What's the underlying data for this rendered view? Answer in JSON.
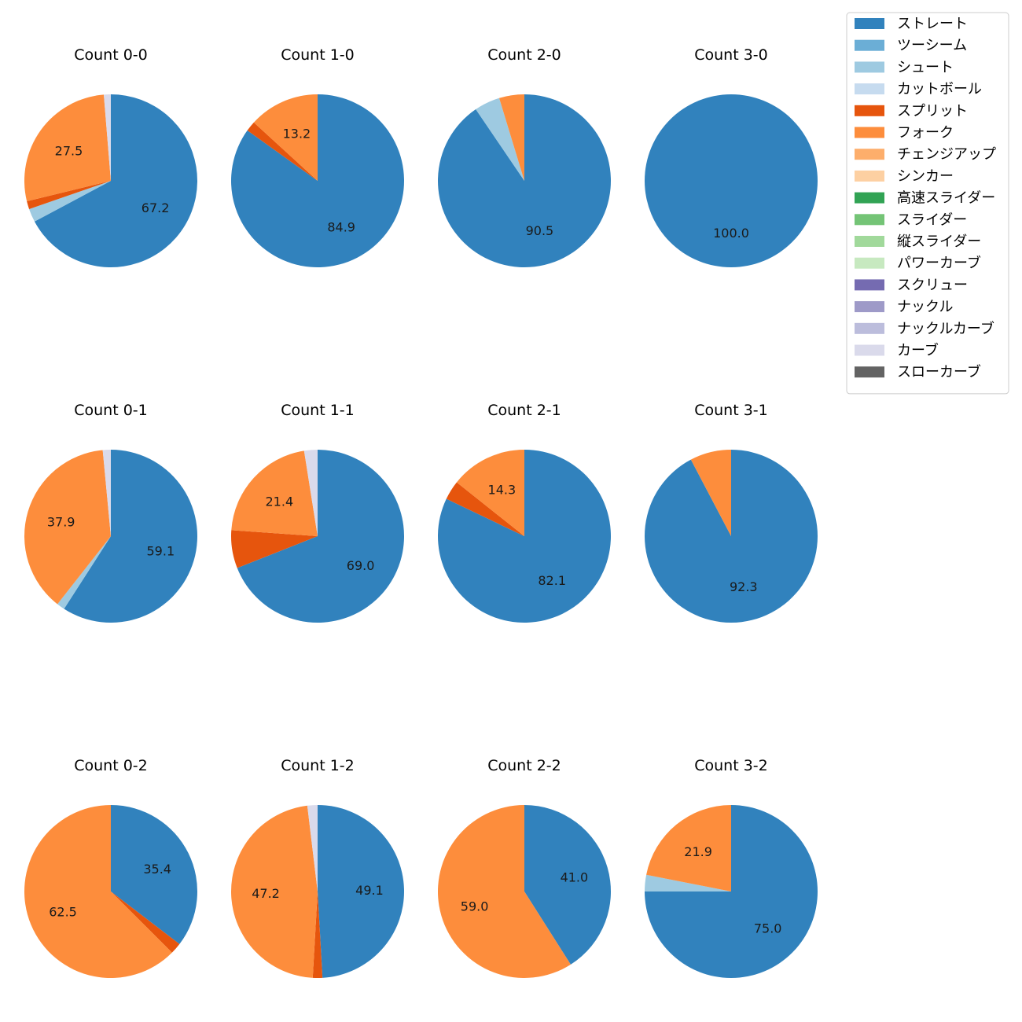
{
  "chart_data": {
    "type": "pie",
    "legend": {
      "placement": "top-right",
      "entries": [
        {
          "name": "ストレート",
          "color": "#3182bd"
        },
        {
          "name": "ツーシーム",
          "color": "#6baed6"
        },
        {
          "name": "シュート",
          "color": "#9ecae1"
        },
        {
          "name": "カットボール",
          "color": "#c6dbef"
        },
        {
          "name": "スプリット",
          "color": "#e6550d"
        },
        {
          "name": "フォーク",
          "color": "#fd8d3c"
        },
        {
          "name": "チェンジアップ",
          "color": "#fdae6b"
        },
        {
          "name": "シンカー",
          "color": "#fdd0a2"
        },
        {
          "name": "高速スライダー",
          "color": "#31a354"
        },
        {
          "name": "スライダー",
          "color": "#74c476"
        },
        {
          "name": "縦スライダー",
          "color": "#a1d99b"
        },
        {
          "name": "パワーカーブ",
          "color": "#c7e9c0"
        },
        {
          "name": "スクリュー",
          "color": "#756bb1"
        },
        {
          "name": "ナックル",
          "color": "#9e9ac8"
        },
        {
          "name": "ナックルカーブ",
          "color": "#bcbddc"
        },
        {
          "name": "カーブ",
          "color": "#dadaeb"
        },
        {
          "name": "スローカーブ",
          "color": "#636363"
        }
      ]
    },
    "pies": [
      {
        "title": "Count 0-0",
        "slices": [
          {
            "pitch": "ストレート",
            "value": 67.2,
            "label": "67.2"
          },
          {
            "pitch": "シュート",
            "value": 2.5
          },
          {
            "pitch": "スプリット",
            "value": 1.5
          },
          {
            "pitch": "フォーク",
            "value": 27.5,
            "label": "27.5"
          },
          {
            "pitch": "カーブ",
            "value": 1.3
          }
        ]
      },
      {
        "title": "Count 1-0",
        "slices": [
          {
            "pitch": "ストレート",
            "value": 84.9,
            "label": "84.9"
          },
          {
            "pitch": "スプリット",
            "value": 1.9
          },
          {
            "pitch": "フォーク",
            "value": 13.2,
            "label": "13.2"
          }
        ]
      },
      {
        "title": "Count 2-0",
        "slices": [
          {
            "pitch": "ストレート",
            "value": 90.5,
            "label": "90.5"
          },
          {
            "pitch": "シュート",
            "value": 4.8
          },
          {
            "pitch": "フォーク",
            "value": 4.7
          }
        ]
      },
      {
        "title": "Count 3-0",
        "slices": [
          {
            "pitch": "ストレート",
            "value": 100.0,
            "label": "100.0"
          }
        ]
      },
      {
        "title": "Count 0-1",
        "slices": [
          {
            "pitch": "ストレート",
            "value": 59.1,
            "label": "59.1"
          },
          {
            "pitch": "シュート",
            "value": 1.5
          },
          {
            "pitch": "フォーク",
            "value": 37.9,
            "label": "37.9"
          },
          {
            "pitch": "カーブ",
            "value": 1.5
          }
        ]
      },
      {
        "title": "Count 1-1",
        "slices": [
          {
            "pitch": "ストレート",
            "value": 69.0,
            "label": "69.0"
          },
          {
            "pitch": "スプリット",
            "value": 7.1
          },
          {
            "pitch": "フォーク",
            "value": 21.4,
            "label": "21.4"
          },
          {
            "pitch": "カーブ",
            "value": 2.5
          }
        ]
      },
      {
        "title": "Count 2-1",
        "slices": [
          {
            "pitch": "ストレート",
            "value": 82.1,
            "label": "82.1"
          },
          {
            "pitch": "スプリット",
            "value": 3.6
          },
          {
            "pitch": "フォーク",
            "value": 14.3,
            "label": "14.3"
          }
        ]
      },
      {
        "title": "Count 3-1",
        "slices": [
          {
            "pitch": "ストレート",
            "value": 92.3,
            "label": "92.3"
          },
          {
            "pitch": "フォーク",
            "value": 7.7
          }
        ]
      },
      {
        "title": "Count 0-2",
        "slices": [
          {
            "pitch": "ストレート",
            "value": 35.4,
            "label": "35.4"
          },
          {
            "pitch": "スプリット",
            "value": 2.1
          },
          {
            "pitch": "フォーク",
            "value": 62.5,
            "label": "62.5"
          }
        ]
      },
      {
        "title": "Count 1-2",
        "slices": [
          {
            "pitch": "ストレート",
            "value": 49.1,
            "label": "49.1"
          },
          {
            "pitch": "スプリット",
            "value": 1.8
          },
          {
            "pitch": "フォーク",
            "value": 47.2,
            "label": "47.2"
          },
          {
            "pitch": "カーブ",
            "value": 1.9
          }
        ]
      },
      {
        "title": "Count 2-2",
        "slices": [
          {
            "pitch": "ストレート",
            "value": 41.0,
            "label": "41.0"
          },
          {
            "pitch": "フォーク",
            "value": 59.0,
            "label": "59.0"
          }
        ]
      },
      {
        "title": "Count 3-2",
        "slices": [
          {
            "pitch": "ストレート",
            "value": 75.0,
            "label": "75.0"
          },
          {
            "pitch": "シュート",
            "value": 3.1
          },
          {
            "pitch": "フォーク",
            "value": 21.9,
            "label": "21.9"
          }
        ]
      }
    ]
  }
}
